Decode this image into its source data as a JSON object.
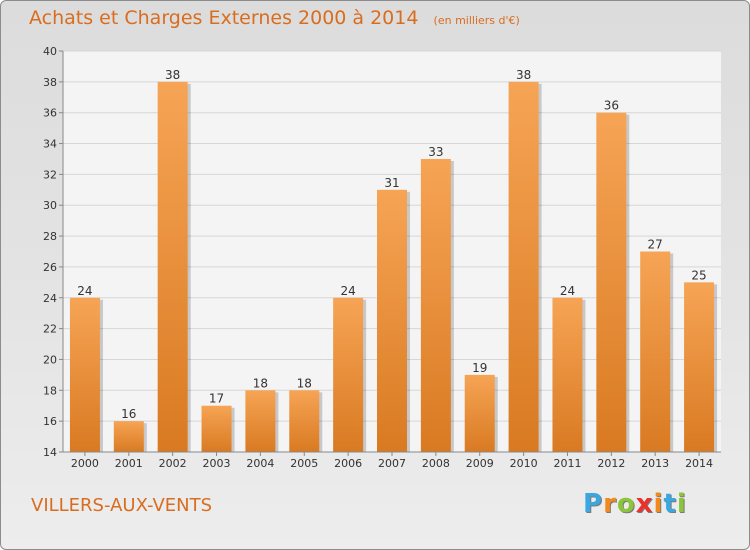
{
  "title": "Achats et Charges Externes 2000 à 2014",
  "unit": "(en milliers d'€)",
  "place": "VILLERS-AUX-VENTS",
  "brand": {
    "text": "Proxiti",
    "letter_colors": [
      "#3aa7e0",
      "#f08a1c",
      "#8cc43c",
      "#e8322a",
      "#f08a1c",
      "#3aa7e0",
      "#8cc43c"
    ]
  },
  "colors": {
    "bar_top": "#f6a455",
    "bar_bottom": "#d97a22",
    "accent_text": "#d96d1f"
  },
  "chart_data": {
    "type": "bar",
    "title": "Achats et Charges Externes 2000 à 2014",
    "categories": [
      "2000",
      "2001",
      "2002",
      "2003",
      "2004",
      "2005",
      "2006",
      "2007",
      "2008",
      "2009",
      "2010",
      "2011",
      "2012",
      "2013",
      "2014"
    ],
    "values": [
      24,
      16,
      38,
      17,
      18,
      18,
      24,
      31,
      33,
      19,
      38,
      24,
      36,
      27,
      25
    ],
    "ylim": [
      14,
      40
    ],
    "yticks": [
      14,
      16,
      18,
      20,
      22,
      24,
      26,
      28,
      30,
      32,
      34,
      36,
      38,
      40
    ],
    "grid": true,
    "xlabel": "",
    "ylabel": ""
  }
}
